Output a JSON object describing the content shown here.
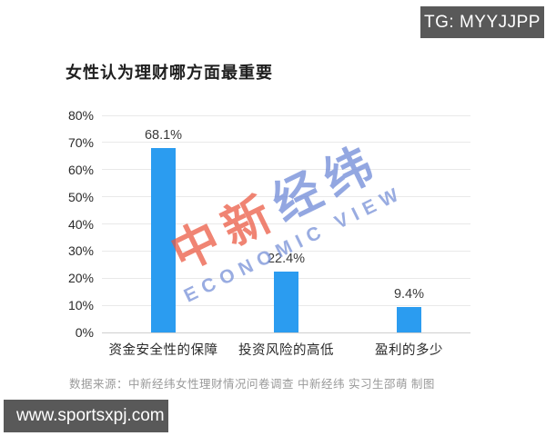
{
  "badge": {
    "label": "TG: MYYJJPP"
  },
  "title": "女性认为理财哪方面最重要",
  "watermark": {
    "part1": "中新",
    "part2": "经纬",
    "subtitle": "ECONOMIC VIEW"
  },
  "source_note": "数据来源：中新经纬女性理财情况问卷调查   中新经纬 实习生邵萌  制图",
  "url_bar": {
    "label": "www.sportsxpj.com"
  },
  "colors": {
    "bar": "#2b9cf0",
    "badge_bg": "#595959",
    "url_bar_bg": "#595959",
    "gridline": "#e9e9e9",
    "watermark_red": "#ea543d",
    "watermark_blue": "#6a85d6"
  },
  "chart_data": {
    "type": "bar",
    "title": "女性认为理财哪方面最重要",
    "categories": [
      "资金安全性的保障",
      "投资风险的高低",
      "盈利的多少"
    ],
    "values": [
      68.1,
      22.4,
      9.4
    ],
    "value_labels": [
      "68.1%",
      "22.4%",
      "9.4%"
    ],
    "xlabel": "",
    "ylabel": "",
    "ylim": [
      0,
      80
    ],
    "ytick_step": 10,
    "ytick_labels": [
      "0%",
      "10%",
      "20%",
      "30%",
      "40%",
      "50%",
      "60%",
      "70%",
      "80%"
    ],
    "grid": true,
    "legend_position": "none",
    "bar_color": "#2b9cf0"
  }
}
